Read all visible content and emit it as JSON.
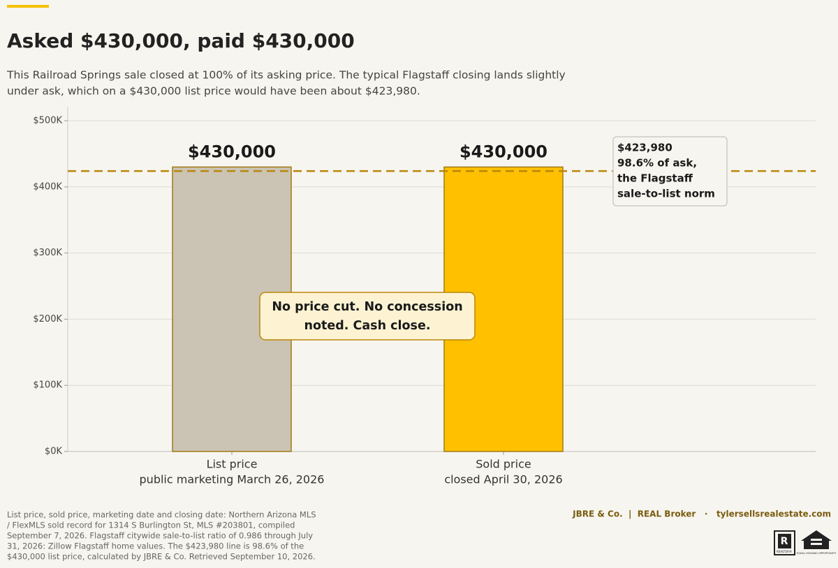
{
  "chart_data": {
    "type": "bar",
    "title": "Asked $430,000, paid $430,000",
    "subtitle_lines": [
      "This Railroad Springs sale closed at 100% of its asking price. The typical Flagstaff closing lands slightly",
      "under ask, which on a $430,000 list price would have been about $423,980."
    ],
    "categories": [
      "List price",
      "Sold price"
    ],
    "category_notes": [
      "public marketing March 26, 2026",
      "closed April 30, 2026"
    ],
    "values": [
      430000,
      430000
    ],
    "value_labels": [
      "$430,000",
      "$430,000"
    ],
    "colors": [
      "#cbc4b4",
      "#ffc000"
    ],
    "ylim": [
      0,
      500000
    ],
    "yticks": [
      {
        "value": 0,
        "label": "$0K"
      },
      {
        "value": 100000,
        "label": "$100K"
      },
      {
        "value": 200000,
        "label": "$200K"
      },
      {
        "value": 300000,
        "label": "$300K"
      },
      {
        "value": 400000,
        "label": "$400K"
      },
      {
        "value": 500000,
        "label": "$500K"
      }
    ],
    "grid": true,
    "reference_line": {
      "value": 423980,
      "color": "#b8860b",
      "label_lines": [
        "$423,980",
        "98.6% of ask,",
        "the Flagstaff",
        "sale-to-list norm"
      ]
    },
    "annotation_lines": [
      "No price cut. No concession",
      "noted. Cash close."
    ],
    "source_lines": [
      "List price, sold price, marketing date and closing date: Northern Arizona MLS",
      "/ FlexMLS sold record for 1314 S Burlington St, MLS #203801, compiled",
      "September 7, 2026. Flagstaff citywide sale-to-list ratio of 0.986 through July",
      "31, 2026: Zillow Flagstaff home values. The $423,980 line is 98.6% of the",
      "$430,000 list price, calculated by JBRE & Co. Retrieved September 10, 2026."
    ],
    "brand": "JBRE & Co.  |  REAL Broker   ·   tylersellsrealestate.com",
    "logos": [
      "REALTOR®",
      "EQUAL HOUSING OPPORTUNITY"
    ]
  }
}
